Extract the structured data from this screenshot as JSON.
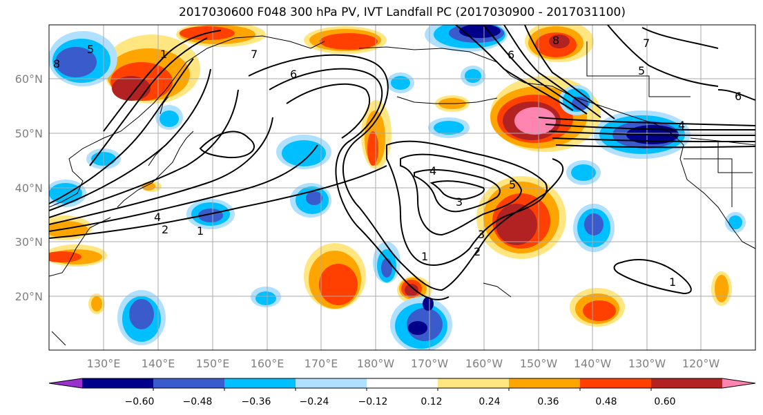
{
  "title": "2017030600 F048 300 hPa PV, IVT Landfall PC (2017030900 - 2017031100)",
  "lon_labels": [
    "130°E",
    "140°E",
    "150°E",
    "160°E",
    "170°E",
    "180°W",
    "170°W",
    "160°W",
    "150°W",
    "140°W",
    "130°W",
    "120°W"
  ],
  "lat_labels": [
    "60°N",
    "50°N",
    "40°N",
    "30°N",
    "20°N"
  ],
  "colorbar": {
    "tick_labels": [
      "−0.60",
      "−0.48",
      "−0.36",
      "−0.24",
      "−0.12",
      "0.12",
      "0.24",
      "0.36",
      "0.48",
      "0.60"
    ],
    "colors": [
      "#9932cc",
      "#00008b",
      "#3a5bcc",
      "#00bfff",
      "#b0e0ff",
      "#ffffff",
      "#ffe680",
      "#ffa500",
      "#ff4000",
      "#b22222",
      "#ff85b0"
    ]
  },
  "contour_labels": [
    "1",
    "2",
    "3",
    "4",
    "5",
    "6",
    "7",
    "8",
    "1",
    "2",
    "1",
    "3",
    "4",
    "5",
    "7",
    "8",
    "6",
    "5",
    "4",
    "6",
    "1"
  ]
}
